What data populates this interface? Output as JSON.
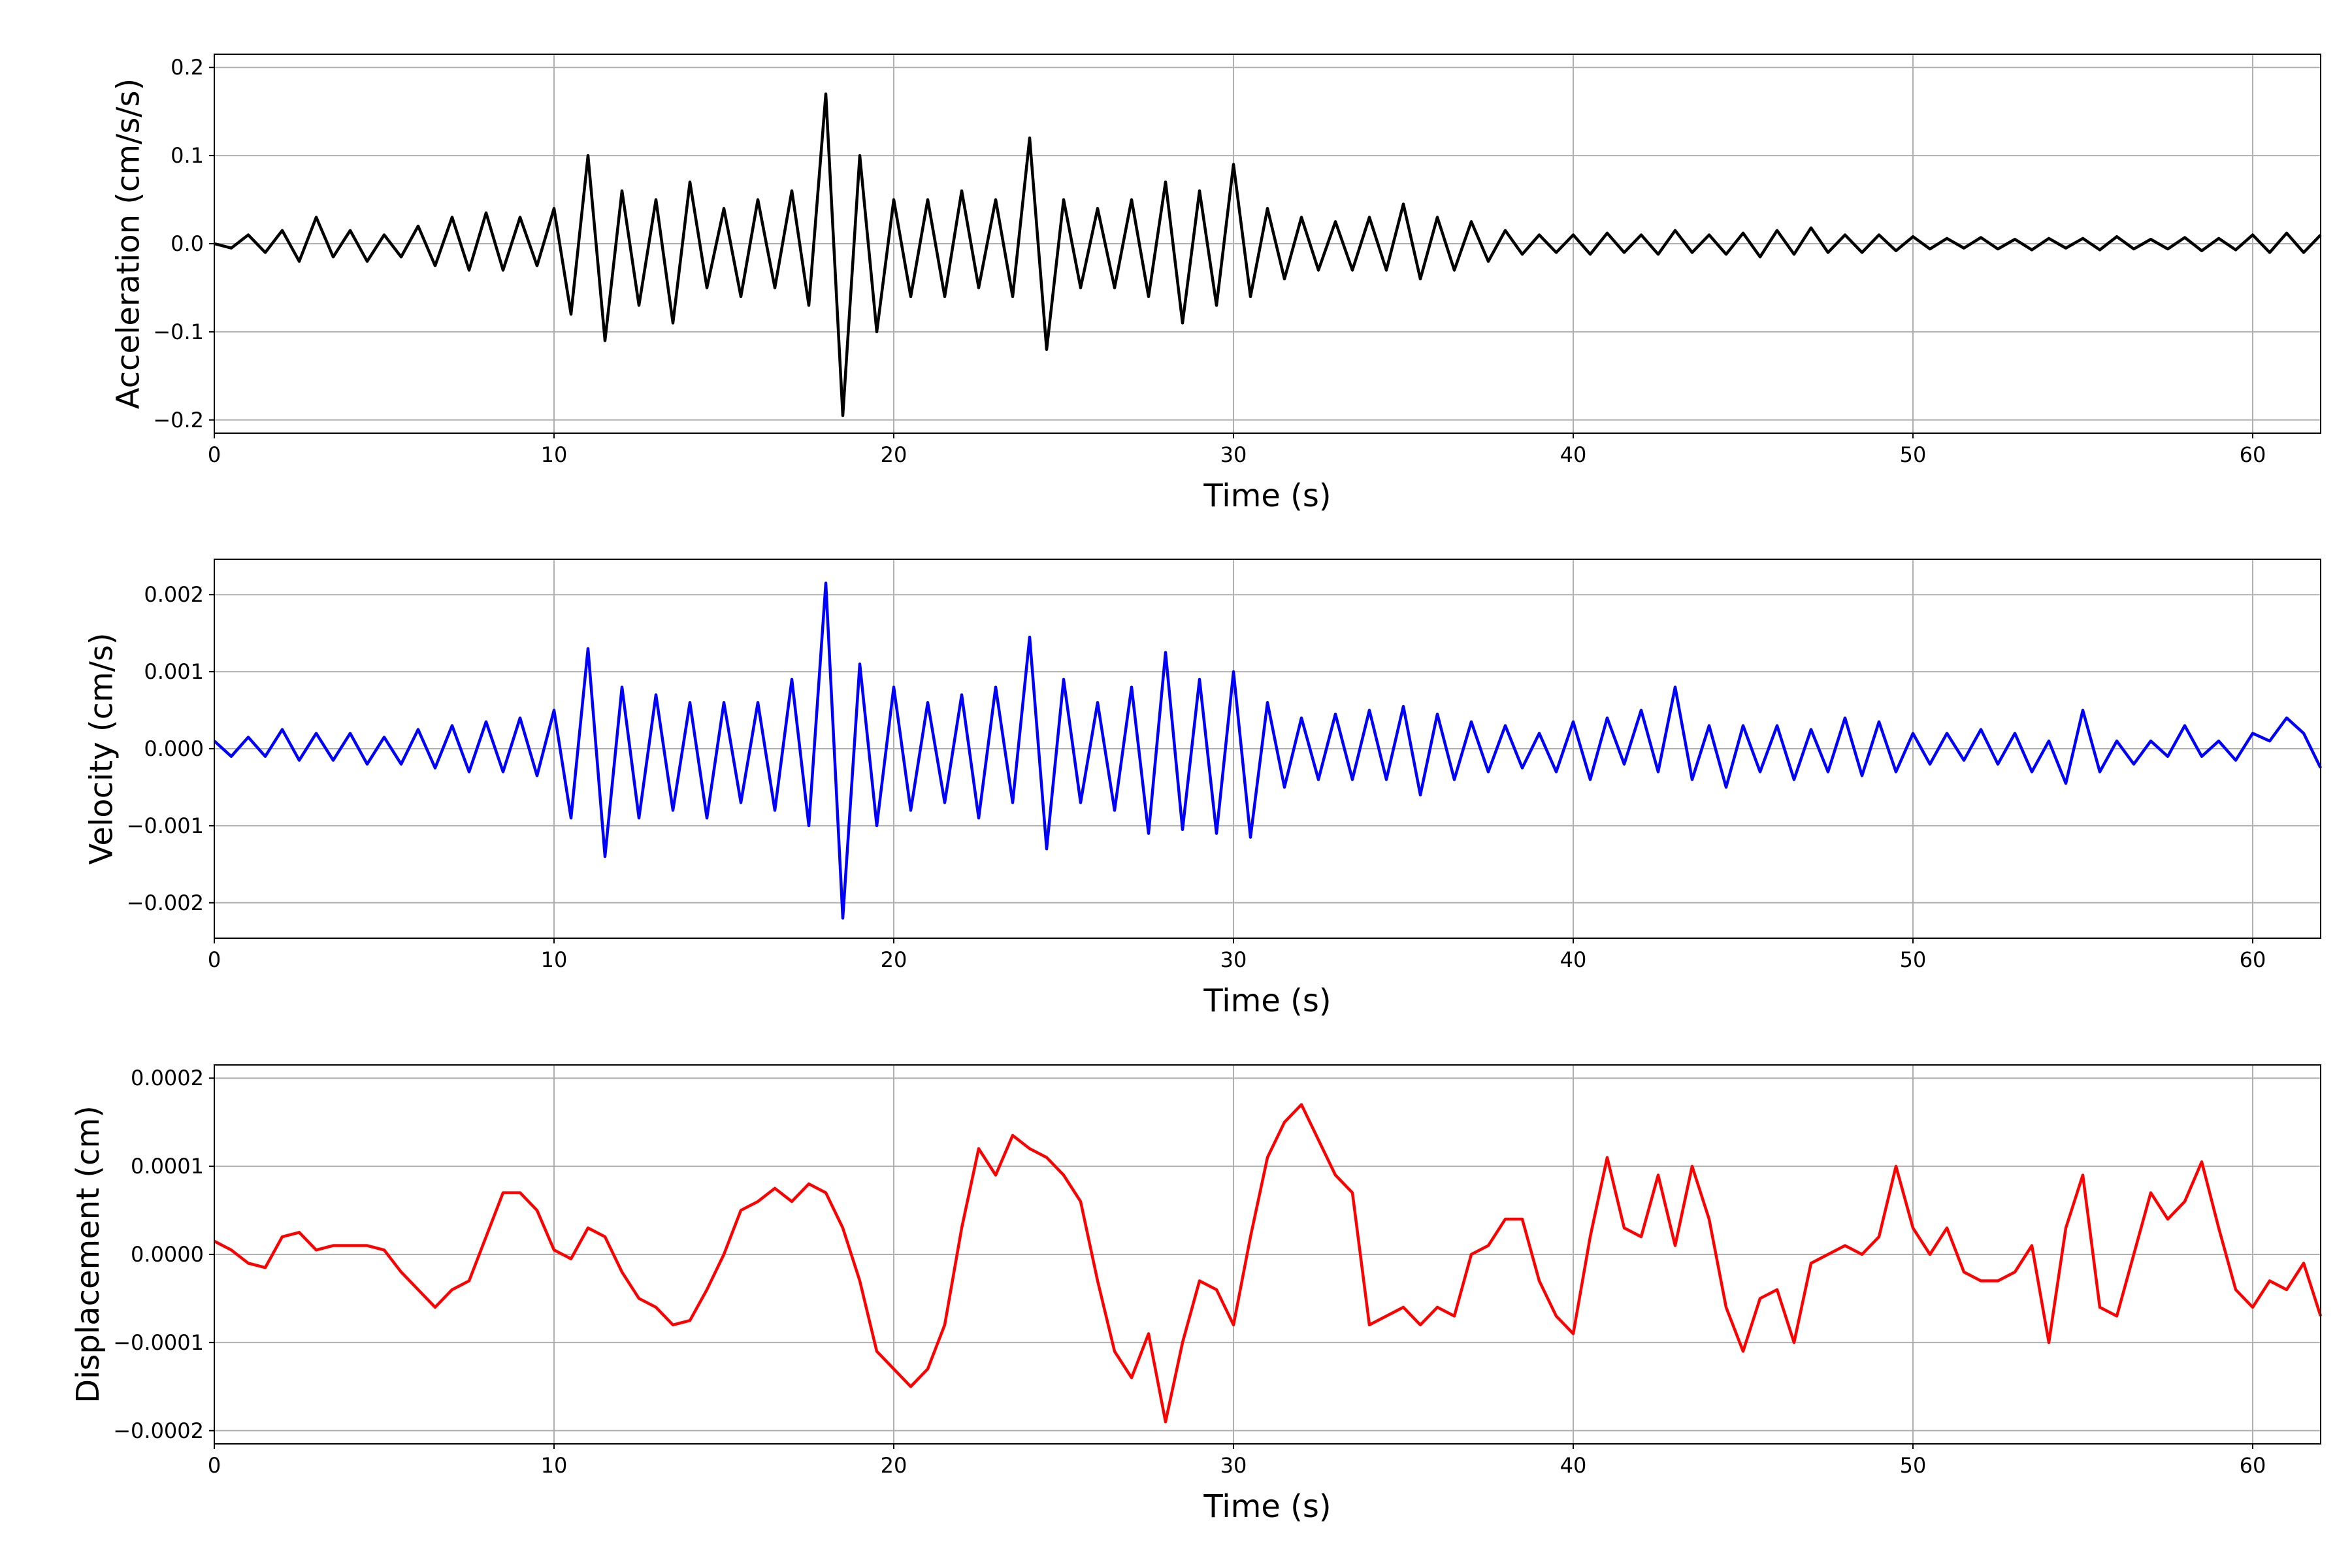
{
  "chart_data": [
    {
      "type": "line",
      "xlabel": "Time (s)",
      "ylabel": "Acceleration (cm/s/s)",
      "color": "#000000",
      "grid": true,
      "xlim": [
        0,
        62
      ],
      "xticks": [
        0,
        10,
        20,
        30,
        40,
        50,
        60
      ],
      "ylim": [
        -0.215,
        0.215
      ],
      "yticks": [
        {
          "value": -0.2,
          "label": "−0.2"
        },
        {
          "value": -0.1,
          "label": "−0.1"
        },
        {
          "value": 0,
          "label": "0.0"
        },
        0.1,
        0.2
      ],
      "x": [
        0,
        0.5,
        1,
        1.5,
        2,
        2.5,
        3,
        3.5,
        4,
        4.5,
        5,
        5.5,
        6,
        6.5,
        7,
        7.5,
        8,
        8.5,
        9,
        9.5,
        10,
        10.5,
        11,
        11.5,
        12,
        12.5,
        13,
        13.5,
        14,
        14.5,
        15,
        15.5,
        16,
        16.5,
        17,
        17.5,
        18,
        18.5,
        19,
        19.5,
        20,
        20.5,
        21,
        21.5,
        22,
        22.5,
        23,
        23.5,
        24,
        24.5,
        25,
        25.5,
        26,
        26.5,
        27,
        27.5,
        28,
        28.5,
        29,
        29.5,
        30,
        30.5,
        31,
        31.5,
        32,
        32.5,
        33,
        33.5,
        34,
        34.5,
        35,
        35.5,
        36,
        36.5,
        37,
        37.5,
        38,
        38.5,
        39,
        39.5,
        40,
        40.5,
        41,
        41.5,
        42,
        42.5,
        43,
        43.5,
        44,
        44.5,
        45,
        45.5,
        46,
        46.5,
        47,
        47.5,
        48,
        48.5,
        49,
        49.5,
        50,
        50.5,
        51,
        51.5,
        52,
        52.5,
        53,
        53.5,
        54,
        54.5,
        55,
        55.5,
        56,
        56.5,
        57,
        57.5,
        58,
        58.5,
        59,
        59.5,
        60,
        60.5,
        61,
        61.5,
        62
      ],
      "values": [
        0,
        -0.005,
        0.01,
        -0.01,
        0.015,
        -0.02,
        0.03,
        -0.015,
        0.015,
        -0.02,
        0.01,
        -0.015,
        0.02,
        -0.025,
        0.03,
        -0.03,
        0.035,
        -0.03,
        0.03,
        -0.025,
        0.04,
        -0.08,
        0.1,
        -0.11,
        0.06,
        -0.07,
        0.05,
        -0.09,
        0.07,
        -0.05,
        0.04,
        -0.06,
        0.05,
        -0.05,
        0.06,
        -0.07,
        0.17,
        -0.195,
        0.1,
        -0.1,
        0.05,
        -0.06,
        0.05,
        -0.06,
        0.06,
        -0.05,
        0.05,
        -0.06,
        0.12,
        -0.12,
        0.05,
        -0.05,
        0.04,
        -0.05,
        0.05,
        -0.06,
        0.07,
        -0.09,
        0.06,
        -0.07,
        0.09,
        -0.06,
        0.04,
        -0.04,
        0.03,
        -0.03,
        0.025,
        -0.03,
        0.03,
        -0.03,
        0.045,
        -0.04,
        0.03,
        -0.03,
        0.025,
        -0.02,
        0.015,
        -0.012,
        0.01,
        -0.01,
        0.01,
        -0.012,
        0.012,
        -0.01,
        0.01,
        -0.012,
        0.015,
        -0.01,
        0.01,
        -0.012,
        0.012,
        -0.015,
        0.015,
        -0.012,
        0.018,
        -0.01,
        0.01,
        -0.01,
        0.01,
        -0.008,
        0.008,
        -0.006,
        0.006,
        -0.005,
        0.007,
        -0.006,
        0.005,
        -0.007,
        0.006,
        -0.005,
        0.006,
        -0.007,
        0.008,
        -0.006,
        0.005,
        -0.006,
        0.007,
        -0.008,
        0.006,
        -0.007,
        0.01,
        -0.01,
        0.012,
        -0.01,
        0.01
      ]
    },
    {
      "type": "line",
      "xlabel": "Time (s)",
      "ylabel": "Velocity (cm/s)",
      "color": "#0000ff",
      "grid": true,
      "xlim": [
        0,
        62
      ],
      "xticks": [
        0,
        10,
        20,
        30,
        40,
        50,
        60
      ],
      "ylim": [
        -0.00246,
        0.00246
      ],
      "yticks": [
        {
          "value": -0.002,
          "label": "−0.002"
        },
        {
          "value": -0.001,
          "label": "−0.001"
        },
        {
          "value": 0,
          "label": "0.000"
        },
        0.001,
        0.002
      ],
      "x": [
        0,
        0.5,
        1,
        1.5,
        2,
        2.5,
        3,
        3.5,
        4,
        4.5,
        5,
        5.5,
        6,
        6.5,
        7,
        7.5,
        8,
        8.5,
        9,
        9.5,
        10,
        10.5,
        11,
        11.5,
        12,
        12.5,
        13,
        13.5,
        14,
        14.5,
        15,
        15.5,
        16,
        16.5,
        17,
        17.5,
        18,
        18.5,
        19,
        19.5,
        20,
        20.5,
        21,
        21.5,
        22,
        22.5,
        23,
        23.5,
        24,
        24.5,
        25,
        25.5,
        26,
        26.5,
        27,
        27.5,
        28,
        28.5,
        29,
        29.5,
        30,
        30.5,
        31,
        31.5,
        32,
        32.5,
        33,
        33.5,
        34,
        34.5,
        35,
        35.5,
        36,
        36.5,
        37,
        37.5,
        38,
        38.5,
        39,
        39.5,
        40,
        40.5,
        41,
        41.5,
        42,
        42.5,
        43,
        43.5,
        44,
        44.5,
        45,
        45.5,
        46,
        46.5,
        47,
        47.5,
        48,
        48.5,
        49,
        49.5,
        50,
        50.5,
        51,
        51.5,
        52,
        52.5,
        53,
        53.5,
        54,
        54.5,
        55,
        55.5,
        56,
        56.5,
        57,
        57.5,
        58,
        58.5,
        59,
        59.5,
        60,
        60.5,
        61,
        61.5,
        62
      ],
      "values": [
        0.0001,
        -0.0001,
        0.00015,
        -0.0001,
        0.00025,
        -0.00015,
        0.0002,
        -0.00015,
        0.0002,
        -0.0002,
        0.00015,
        -0.0002,
        0.00025,
        -0.00025,
        0.0003,
        -0.0003,
        0.00035,
        -0.0003,
        0.0004,
        -0.00035,
        0.0005,
        -0.0009,
        0.0013,
        -0.0014,
        0.0008,
        -0.0009,
        0.0007,
        -0.0008,
        0.0006,
        -0.0009,
        0.0006,
        -0.0007,
        0.0006,
        -0.0008,
        0.0009,
        -0.001,
        0.00215,
        -0.0022,
        0.0011,
        -0.001,
        0.0008,
        -0.0008,
        0.0006,
        -0.0007,
        0.0007,
        -0.0009,
        0.0008,
        -0.0007,
        0.00145,
        -0.0013,
        0.0009,
        -0.0007,
        0.0006,
        -0.0008,
        0.0008,
        -0.0011,
        0.00125,
        -0.00105,
        0.0009,
        -0.0011,
        0.001,
        -0.00115,
        0.0006,
        -0.0005,
        0.0004,
        -0.0004,
        0.00045,
        -0.0004,
        0.0005,
        -0.0004,
        0.00055,
        -0.0006,
        0.00045,
        -0.0004,
        0.00035,
        -0.0003,
        0.0003,
        -0.00025,
        0.0002,
        -0.0003,
        0.00035,
        -0.0004,
        0.0004,
        -0.0002,
        0.0005,
        -0.0003,
        0.0008,
        -0.0004,
        0.0003,
        -0.0005,
        0.0003,
        -0.0003,
        0.0003,
        -0.0004,
        0.00025,
        -0.0003,
        0.0004,
        -0.00035,
        0.00035,
        -0.0003,
        0.0002,
        -0.0002,
        0.0002,
        -0.00015,
        0.00025,
        -0.0002,
        0.0002,
        -0.0003,
        0.0001,
        -0.00045,
        0.0005,
        -0.0003,
        0.0001,
        -0.0002,
        0.0001,
        -0.0001,
        0.0003,
        -0.0001,
        0.0001,
        -0.00015,
        0.0002,
        0.0001,
        0.0004,
        0.0002,
        -0.00025
      ]
    },
    {
      "type": "line",
      "xlabel": "Time (s)",
      "ylabel": "Displacement (cm)",
      "color": "#ff0000",
      "grid": true,
      "xlim": [
        0,
        62
      ],
      "xticks": [
        0,
        10,
        20,
        30,
        40,
        50,
        60
      ],
      "ylim": [
        -0.000215,
        0.000215
      ],
      "yticks": [
        {
          "value": -0.0002,
          "label": "−0.0002"
        },
        {
          "value": -0.0001,
          "label": "−0.0001"
        },
        {
          "value": 0,
          "label": "0.0000"
        },
        0.0001,
        0.0002
      ],
      "x": [
        0,
        0.5,
        1,
        1.5,
        2,
        2.5,
        3,
        3.5,
        4,
        4.5,
        5,
        5.5,
        6,
        6.5,
        7,
        7.5,
        8,
        8.5,
        9,
        9.5,
        10,
        10.5,
        11,
        11.5,
        12,
        12.5,
        13,
        13.5,
        14,
        14.5,
        15,
        15.5,
        16,
        16.5,
        17,
        17.5,
        18,
        18.5,
        19,
        19.5,
        20,
        20.5,
        21,
        21.5,
        22,
        22.5,
        23,
        23.5,
        24,
        24.5,
        25,
        25.5,
        26,
        26.5,
        27,
        27.5,
        28,
        28.5,
        29,
        29.5,
        30,
        30.5,
        31,
        31.5,
        32,
        32.5,
        33,
        33.5,
        34,
        34.5,
        35,
        35.5,
        36,
        36.5,
        37,
        37.5,
        38,
        38.5,
        39,
        39.5,
        40,
        40.5,
        41,
        41.5,
        42,
        42.5,
        43,
        43.5,
        44,
        44.5,
        45,
        45.5,
        46,
        46.5,
        47,
        47.5,
        48,
        48.5,
        49,
        49.5,
        50,
        50.5,
        51,
        51.5,
        52,
        52.5,
        53,
        53.5,
        54,
        54.5,
        55,
        55.5,
        56,
        56.5,
        57,
        57.5,
        58,
        58.5,
        59,
        59.5,
        60,
        60.5,
        61,
        61.5,
        62
      ],
      "values": [
        1.5e-05,
        5e-06,
        -1e-05,
        -1.5e-05,
        2e-05,
        2.5e-05,
        5e-06,
        1e-05,
        1e-05,
        1e-05,
        5e-06,
        -2e-05,
        -4e-05,
        -6e-05,
        -4e-05,
        -3e-05,
        2e-05,
        7e-05,
        7e-05,
        5e-05,
        5e-06,
        -5e-06,
        3e-05,
        2e-05,
        -2e-05,
        -5e-05,
        -6e-05,
        -8e-05,
        -7.5e-05,
        -4e-05,
        0,
        5e-05,
        6e-05,
        7.5e-05,
        6e-05,
        8e-05,
        7e-05,
        3e-05,
        -3e-05,
        -0.00011,
        -0.00013,
        -0.00015,
        -0.00013,
        -8e-05,
        3e-05,
        0.00012,
        9e-05,
        0.000135,
        0.00012,
        0.00011,
        9e-05,
        6e-05,
        -3e-05,
        -0.00011,
        -0.00014,
        -9e-05,
        -0.00019,
        -0.0001,
        -3e-05,
        -4e-05,
        -8e-05,
        2e-05,
        0.00011,
        0.00015,
        0.00017,
        0.00013,
        9e-05,
        7e-05,
        -8e-05,
        -7e-05,
        -6e-05,
        -8e-05,
        -6e-05,
        -7e-05,
        0,
        1e-05,
        4e-05,
        4e-05,
        -3e-05,
        -7e-05,
        -9e-05,
        2e-05,
        0.00011,
        3e-05,
        2e-05,
        9e-05,
        1e-05,
        0.0001,
        4e-05,
        -6e-05,
        -0.00011,
        -5e-05,
        -4e-05,
        -0.0001,
        -1e-05,
        0,
        1e-05,
        0,
        2e-05,
        0.0001,
        3e-05,
        0,
        3e-05,
        -2e-05,
        -3e-05,
        -3e-05,
        -2e-05,
        1e-05,
        -0.0001,
        3e-05,
        9e-05,
        -6e-05,
        -7e-05,
        0,
        7e-05,
        4e-05,
        6e-05,
        0.000105,
        3e-05,
        -4e-05,
        -6e-05,
        -3e-05,
        -4e-05,
        -1e-05,
        -7e-05
      ]
    }
  ]
}
